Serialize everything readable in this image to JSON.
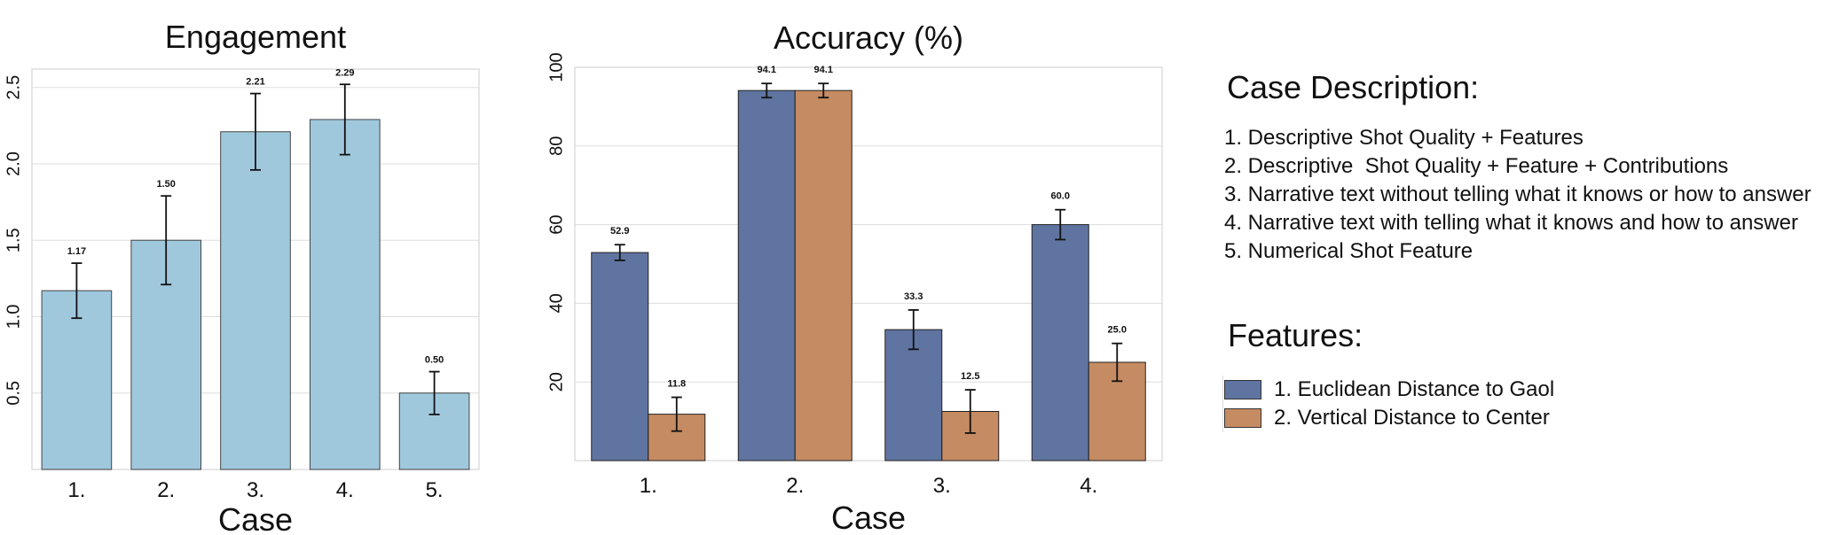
{
  "colors": {
    "engagement_bar": "#9fc8dd",
    "series1": "#5f74a0",
    "series2": "#c58b62",
    "grid": "#dddddd",
    "frame": "#dddddd",
    "text": "#111111"
  },
  "chart_data": [
    {
      "type": "bar",
      "title": "Engagement",
      "xlabel": "Case",
      "ylabel": "",
      "categories": [
        "1.",
        "2.",
        "3.",
        "4.",
        "5."
      ],
      "values": [
        1.17,
        1.5,
        2.21,
        2.29,
        0.5
      ],
      "value_labels": [
        "1.17",
        "1.50",
        "2.21",
        "2.29",
        "0.50"
      ],
      "errors": [
        0.18,
        0.29,
        0.25,
        0.23,
        0.14
      ],
      "yticks": [
        "0.5",
        "1.0",
        "1.5",
        "2.0",
        "2.5"
      ],
      "ytick_values": [
        0.5,
        1.0,
        1.5,
        2.0,
        2.5
      ],
      "ylim": [
        0,
        2.62
      ],
      "grid": true
    },
    {
      "type": "bar",
      "title": "Accuracy (%)",
      "xlabel": "Case",
      "ylabel": "",
      "categories": [
        "1.",
        "2.",
        "3.",
        "4."
      ],
      "series": [
        {
          "legend_index": 0,
          "values": [
            52.9,
            94.1,
            33.3,
            60.0
          ],
          "value_labels": [
            "52.9",
            "94.1",
            "33.3",
            "60.0"
          ],
          "errors": [
            2.0,
            1.8,
            5.0,
            3.8
          ]
        },
        {
          "legend_index": 1,
          "values": [
            11.8,
            94.1,
            12.5,
            25.0
          ],
          "value_labels": [
            "11.8",
            "94.1",
            "12.5",
            "25.0"
          ],
          "errors": [
            4.3,
            1.8,
            5.5,
            4.8
          ]
        }
      ],
      "yticks": [
        "20",
        "40",
        "60",
        "80",
        "100"
      ],
      "ytick_values": [
        20,
        40,
        60,
        80,
        100
      ],
      "ylim": [
        0,
        100
      ],
      "grid": true
    }
  ],
  "description": {
    "title": "Case Description:",
    "items": [
      "1. Descriptive Shot Quality + Features",
      "2. Descriptive  Shot Quality + Feature + Contributions",
      "3. Narrative text without telling what it knows or how to answer",
      "4. Narrative text with telling what it knows and how to answer",
      "5. Numerical Shot Feature"
    ]
  },
  "features": {
    "title": "Features:",
    "items": [
      "1. Euclidean Distance to Gaol",
      "2. Vertical Distance to Center"
    ]
  }
}
